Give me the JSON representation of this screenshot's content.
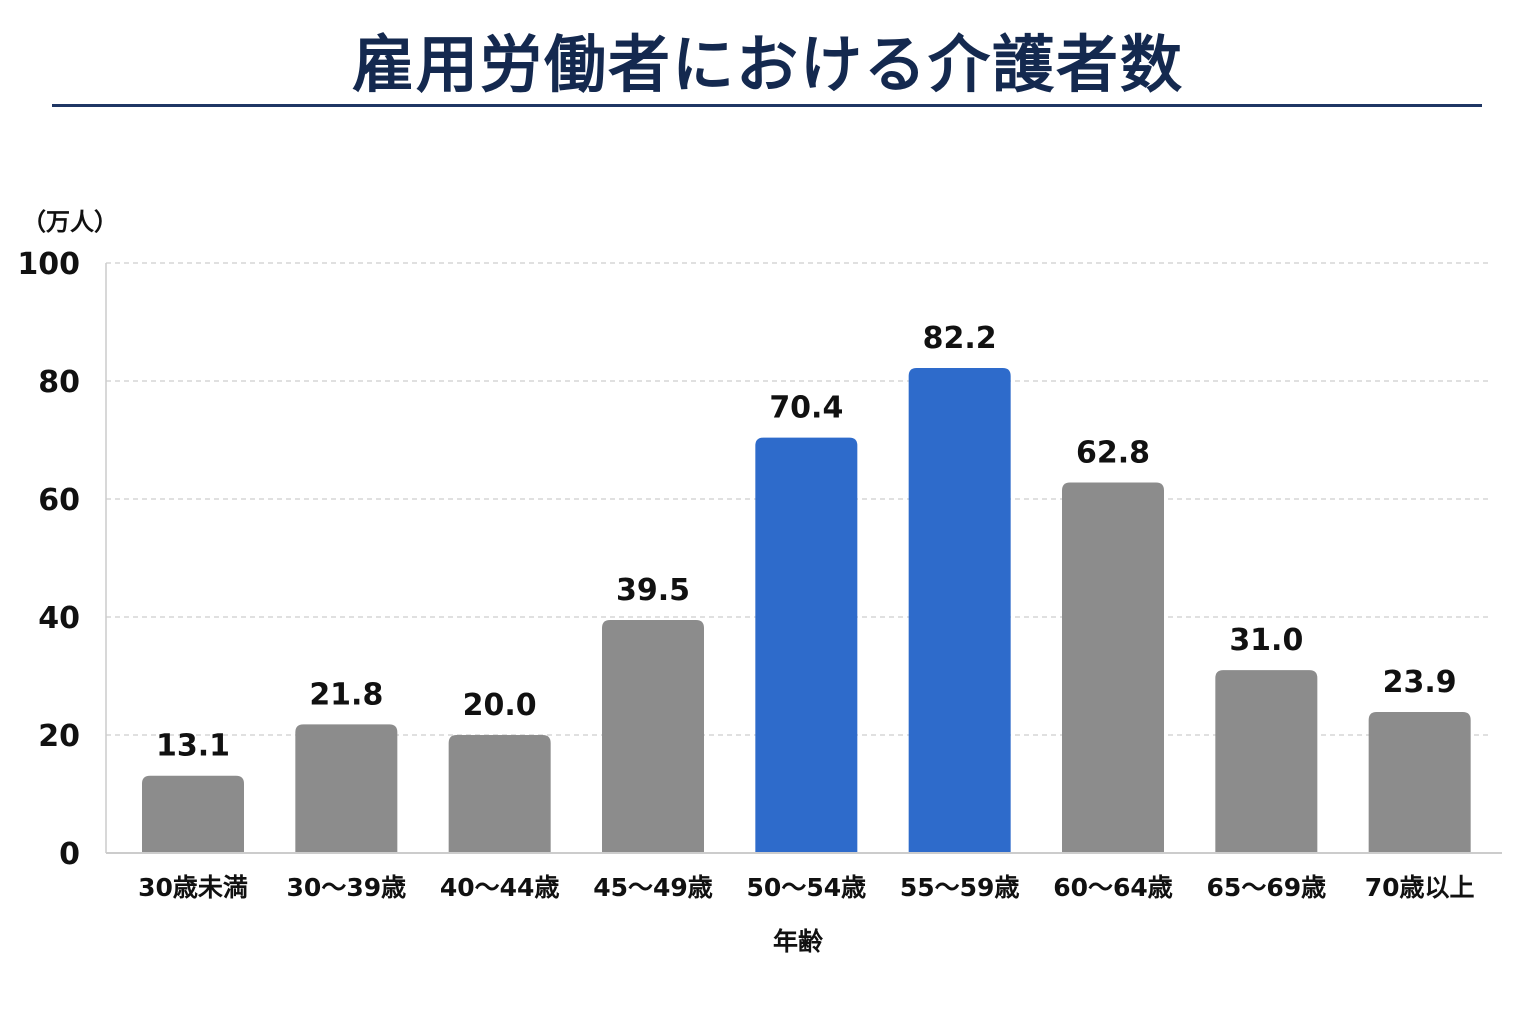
{
  "chart_data": {
    "type": "bar",
    "title": "雇用労働者における介護者数",
    "unit_label": "（万人）",
    "xlabel": "年齢",
    "ylabel": "",
    "ylim": [
      0,
      100
    ],
    "yticks": [
      0,
      20,
      40,
      60,
      80,
      100
    ],
    "grid": true,
    "categories": [
      "30歳未満",
      "30〜39歳",
      "40〜44歳",
      "45〜49歳",
      "50〜54歳",
      "55〜59歳",
      "60〜64歳",
      "65〜69歳",
      "70歳以上"
    ],
    "values": [
      13.1,
      21.8,
      20.0,
      39.5,
      70.4,
      82.2,
      62.8,
      31.0,
      23.9
    ],
    "value_labels": [
      "13.1",
      "21.8",
      "20.0",
      "39.5",
      "70.4",
      "82.2",
      "62.8",
      "31.0",
      "23.9"
    ],
    "highlighted": [
      false,
      false,
      false,
      false,
      true,
      true,
      false,
      false,
      false
    ],
    "colors": {
      "default_bar": "#8c8c8c",
      "highlight_bar": "#2e6bcb",
      "title": "#14294f",
      "title_rule": "#1f3664",
      "grid": "#d6d6d6",
      "axis": "#cccccc",
      "text": "#111111"
    }
  }
}
